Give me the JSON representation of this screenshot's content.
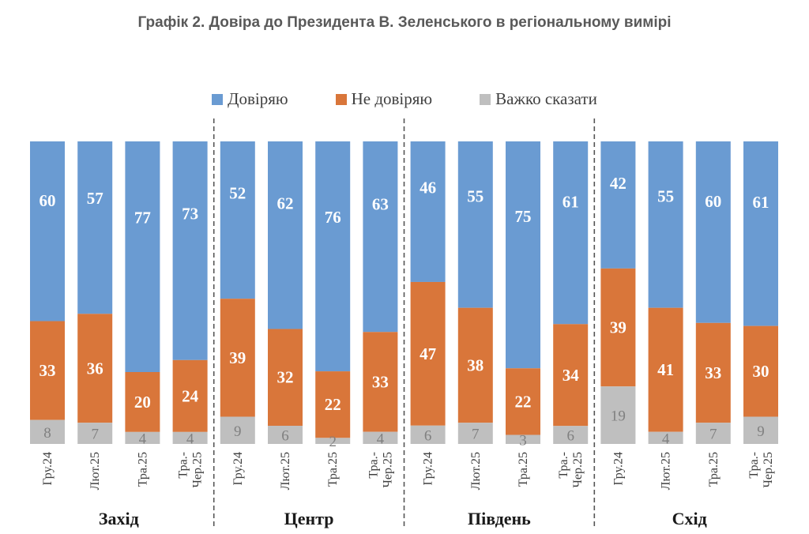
{
  "title": "Графік 2. Довіра до Президента В. Зеленського в регіональному вимірі",
  "legend": [
    {
      "label": "Довіряю",
      "color": "#6a9bd2"
    },
    {
      "label": "Не довіряю",
      "color": "#d9763a"
    },
    {
      "label": "Важко сказати",
      "color": "#bfbfbf"
    }
  ],
  "chart_data": {
    "type": "bar",
    "stacked": true,
    "ylim": [
      0,
      100
    ],
    "grid": false,
    "legend_position": "top",
    "regions": [
      "Захід",
      "Центр",
      "Південь",
      "Схід"
    ],
    "categories": [
      {
        "region": "Захід",
        "label": [
          "Гру.24"
        ]
      },
      {
        "region": "Захід",
        "label": [
          "Лют.25"
        ]
      },
      {
        "region": "Захід",
        "label": [
          "Тра.25"
        ]
      },
      {
        "region": "Захід",
        "label": [
          "Тра.-",
          "Чер.25"
        ]
      },
      {
        "region": "Центр",
        "label": [
          "Гру.24"
        ]
      },
      {
        "region": "Центр",
        "label": [
          "Лют.25"
        ]
      },
      {
        "region": "Центр",
        "label": [
          "Тра.25"
        ]
      },
      {
        "region": "Центр",
        "label": [
          "Тра.-",
          "Чер.25"
        ]
      },
      {
        "region": "Південь",
        "label": [
          "Гру.24"
        ]
      },
      {
        "region": "Південь",
        "label": [
          "Лют.25"
        ]
      },
      {
        "region": "Південь",
        "label": [
          "Тра.25"
        ]
      },
      {
        "region": "Південь",
        "label": [
          "Тра.-",
          "Чер.25"
        ]
      },
      {
        "region": "Схід",
        "label": [
          "Гру.24"
        ]
      },
      {
        "region": "Схід",
        "label": [
          "Лют.25"
        ]
      },
      {
        "region": "Схід",
        "label": [
          "Тра.25"
        ]
      },
      {
        "region": "Схід",
        "label": [
          "Тра.-",
          "Чер.25"
        ]
      }
    ],
    "series": [
      {
        "name": "Важко сказати",
        "color": "#bfbfbf",
        "values": [
          8,
          7,
          4,
          4,
          9,
          6,
          2,
          4,
          6,
          7,
          3,
          6,
          19,
          4,
          7,
          9
        ]
      },
      {
        "name": "Не довіряю",
        "color": "#d9763a",
        "values": [
          33,
          36,
          20,
          24,
          39,
          32,
          22,
          33,
          47,
          38,
          22,
          34,
          39,
          41,
          33,
          30
        ]
      },
      {
        "name": "Довіряю",
        "color": "#6a9bd2",
        "values": [
          60,
          57,
          77,
          73,
          52,
          62,
          76,
          63,
          46,
          55,
          75,
          61,
          42,
          55,
          60,
          61
        ]
      }
    ]
  }
}
